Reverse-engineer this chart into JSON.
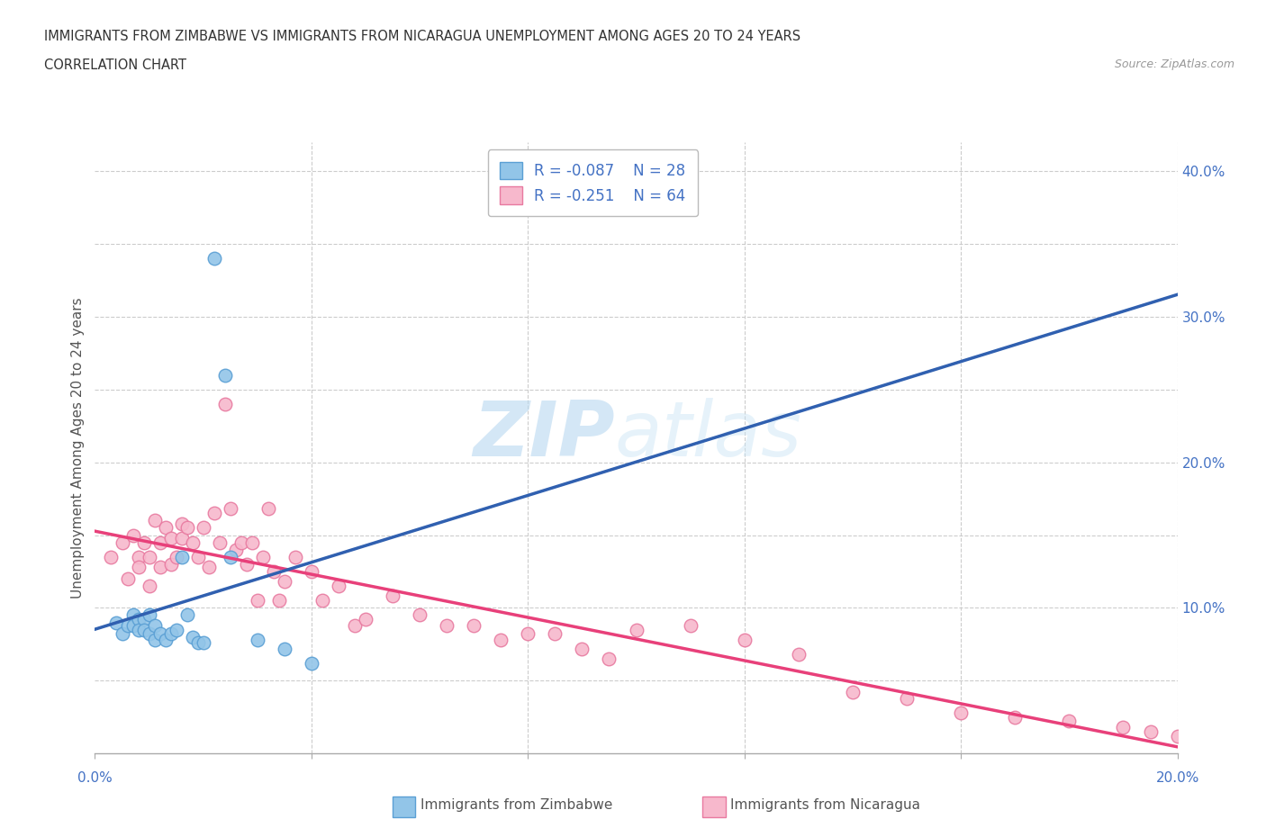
{
  "title_line1": "IMMIGRANTS FROM ZIMBABWE VS IMMIGRANTS FROM NICARAGUA UNEMPLOYMENT AMONG AGES 20 TO 24 YEARS",
  "title_line2": "CORRELATION CHART",
  "source_text": "Source: ZipAtlas.com",
  "ylabel": "Unemployment Among Ages 20 to 24 years",
  "xlim": [
    0.0,
    0.2
  ],
  "ylim": [
    0.0,
    0.42
  ],
  "zimbabwe_color": "#92c5e8",
  "nicaragua_color": "#f7b8cc",
  "zimbabwe_edge_color": "#5a9fd4",
  "nicaragua_edge_color": "#e87aa0",
  "trend_zimbabwe_color": "#3060b0",
  "trend_nicaragua_color": "#e8407a",
  "trend_zim_dashed_color": "#7ab0e0",
  "legend_R_zimbabwe": "R = -0.087",
  "legend_N_zimbabwe": "N = 28",
  "legend_R_nicaragua": "R = -0.251",
  "legend_N_nicaragua": "N = 64",
  "watermark_zip": "ZIP",
  "watermark_atlas": "atlas",
  "zimbabwe_x": [
    0.004,
    0.005,
    0.006,
    0.007,
    0.007,
    0.008,
    0.008,
    0.009,
    0.009,
    0.01,
    0.01,
    0.011,
    0.011,
    0.012,
    0.013,
    0.014,
    0.015,
    0.016,
    0.017,
    0.018,
    0.019,
    0.02,
    0.022,
    0.024,
    0.025,
    0.03,
    0.035,
    0.04
  ],
  "zimbabwe_y": [
    0.09,
    0.082,
    0.088,
    0.095,
    0.088,
    0.092,
    0.085,
    0.092,
    0.085,
    0.095,
    0.082,
    0.088,
    0.078,
    0.082,
    0.078,
    0.082,
    0.085,
    0.135,
    0.095,
    0.08,
    0.076,
    0.076,
    0.34,
    0.26,
    0.135,
    0.078,
    0.072,
    0.062
  ],
  "nicaragua_x": [
    0.003,
    0.005,
    0.006,
    0.007,
    0.008,
    0.008,
    0.009,
    0.01,
    0.01,
    0.011,
    0.012,
    0.012,
    0.013,
    0.014,
    0.014,
    0.015,
    0.016,
    0.016,
    0.017,
    0.018,
    0.019,
    0.02,
    0.021,
    0.022,
    0.023,
    0.024,
    0.025,
    0.026,
    0.027,
    0.028,
    0.029,
    0.03,
    0.031,
    0.032,
    0.033,
    0.034,
    0.035,
    0.037,
    0.04,
    0.042,
    0.045,
    0.048,
    0.05,
    0.055,
    0.06,
    0.065,
    0.07,
    0.075,
    0.08,
    0.085,
    0.09,
    0.095,
    0.1,
    0.11,
    0.12,
    0.13,
    0.14,
    0.15,
    0.16,
    0.17,
    0.18,
    0.19,
    0.195,
    0.2
  ],
  "nicaragua_y": [
    0.135,
    0.145,
    0.12,
    0.15,
    0.135,
    0.128,
    0.145,
    0.135,
    0.115,
    0.16,
    0.128,
    0.145,
    0.155,
    0.13,
    0.148,
    0.135,
    0.148,
    0.158,
    0.155,
    0.145,
    0.135,
    0.155,
    0.128,
    0.165,
    0.145,
    0.24,
    0.168,
    0.14,
    0.145,
    0.13,
    0.145,
    0.105,
    0.135,
    0.168,
    0.125,
    0.105,
    0.118,
    0.135,
    0.125,
    0.105,
    0.115,
    0.088,
    0.092,
    0.108,
    0.095,
    0.088,
    0.088,
    0.078,
    0.082,
    0.082,
    0.072,
    0.065,
    0.085,
    0.088,
    0.078,
    0.068,
    0.042,
    0.038,
    0.028,
    0.025,
    0.022,
    0.018,
    0.015,
    0.012
  ]
}
